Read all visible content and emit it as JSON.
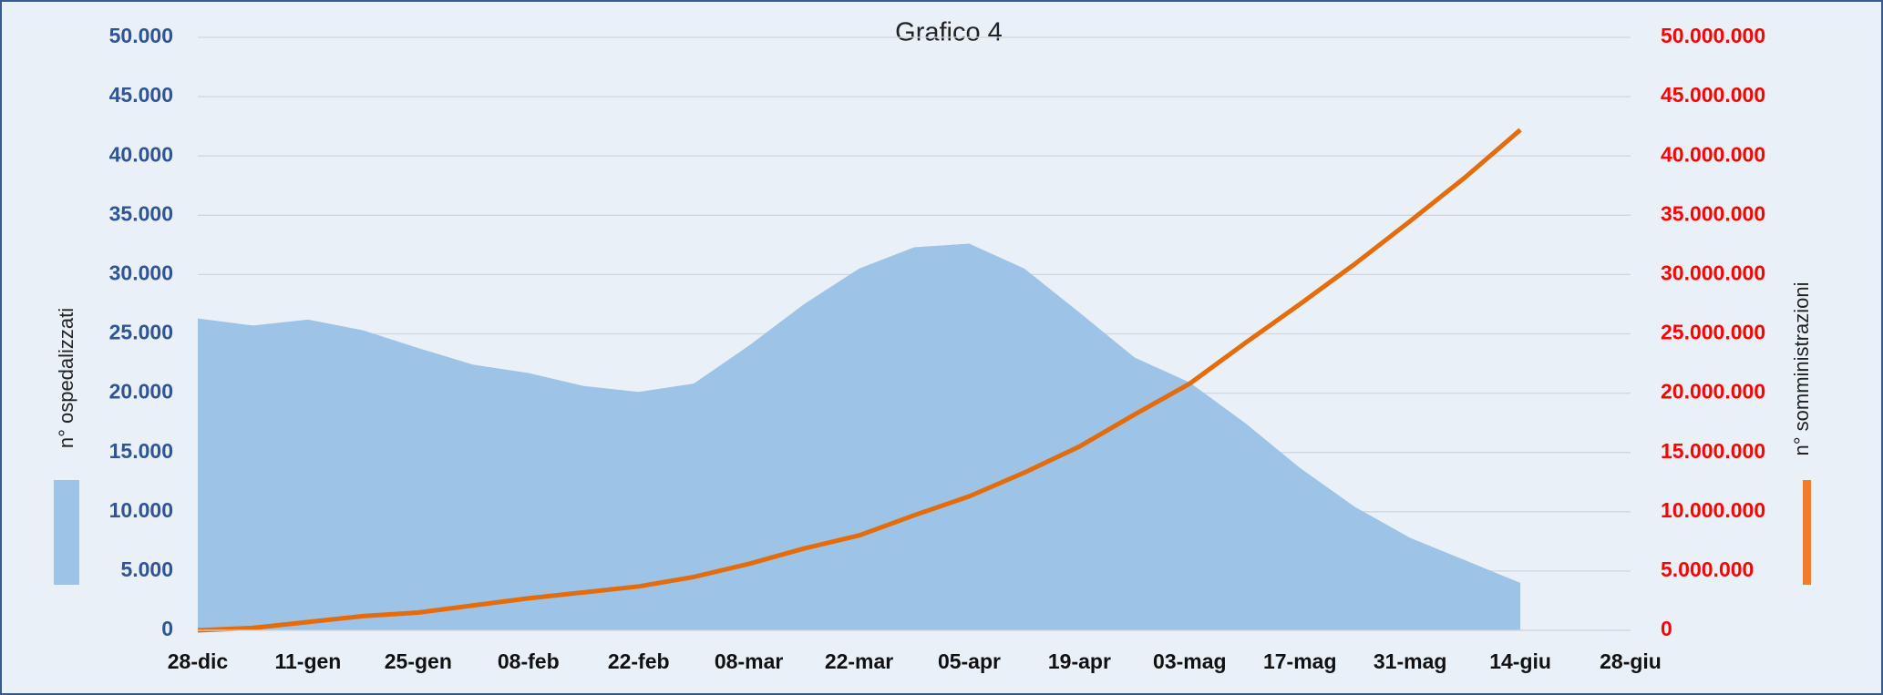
{
  "chart_data": {
    "type": "area-line",
    "title": "Grafico 4",
    "ylabel": "n° ospedalizzati",
    "y2label": "n° somministrazioni",
    "categories": [
      "28-dic",
      null,
      "11-gen",
      null,
      "25-gen",
      null,
      "08-feb",
      null,
      "22-feb",
      null,
      "08-mar",
      null,
      "22-mar",
      null,
      "05-apr",
      null,
      "19-apr",
      null,
      "03-mag",
      null,
      "17-mag",
      null,
      "31-mag",
      null,
      "14-giu",
      null,
      "28-giu"
    ],
    "series": [
      {
        "name": "n° ospedalizzati",
        "type": "area",
        "color": "#9dc3e6",
        "values": [
          26300,
          25700,
          26200,
          25300,
          23800,
          22400,
          21700,
          20600,
          20100,
          20800,
          24000,
          27500,
          30500,
          32300,
          32600,
          30500,
          26800,
          23000,
          20900,
          17500,
          13700,
          10400,
          7800,
          5900,
          4000,
          null,
          null
        ]
      },
      {
        "name": "n° somministrazioni",
        "type": "line",
        "axis": "y2",
        "color": "#e46c0a",
        "values": [
          0,
          200000,
          700000,
          1200000,
          1500000,
          2100000,
          2700000,
          3200000,
          3700000,
          4500000,
          5600000,
          6900000,
          8000000,
          9700000,
          11300000,
          13300000,
          15500000,
          18200000,
          20800000,
          24200000,
          27500000,
          30900000,
          34500000,
          38200000,
          42200000,
          null,
          null
        ]
      }
    ],
    "ylim": [
      0,
      50000
    ],
    "yticks": [
      0,
      {
        "value": 5000,
        "label": "5.000"
      },
      {
        "value": 10000,
        "label": "10.000"
      },
      {
        "value": 15000,
        "label": "15.000"
      },
      {
        "value": 20000,
        "label": "20.000"
      },
      {
        "value": 25000,
        "label": "25.000"
      },
      {
        "value": 30000,
        "label": "30.000"
      },
      {
        "value": 35000,
        "label": "35.000"
      },
      {
        "value": 40000,
        "label": "40.000"
      },
      {
        "value": 45000,
        "label": "45.000"
      },
      {
        "value": 50000,
        "label": "50.000"
      }
    ],
    "y2lim": [
      0,
      50000000
    ],
    "y2ticks": [
      0,
      {
        "value": 5000000,
        "label": "5.000.000"
      },
      {
        "value": 10000000,
        "label": "10.000.000"
      },
      {
        "value": 15000000,
        "label": "15.000.000"
      },
      {
        "value": 20000000,
        "label": "20.000.000"
      },
      {
        "value": 25000000,
        "label": "25.000.000"
      },
      {
        "value": 30000000,
        "label": "30.000.000"
      },
      {
        "value": 35000000,
        "label": "35.000.000"
      },
      {
        "value": 40000000,
        "label": "40.000.000"
      },
      {
        "value": 45000000,
        "label": "45.000.000"
      },
      {
        "value": 50000000,
        "label": "50.000.000"
      }
    ],
    "grid": true
  }
}
